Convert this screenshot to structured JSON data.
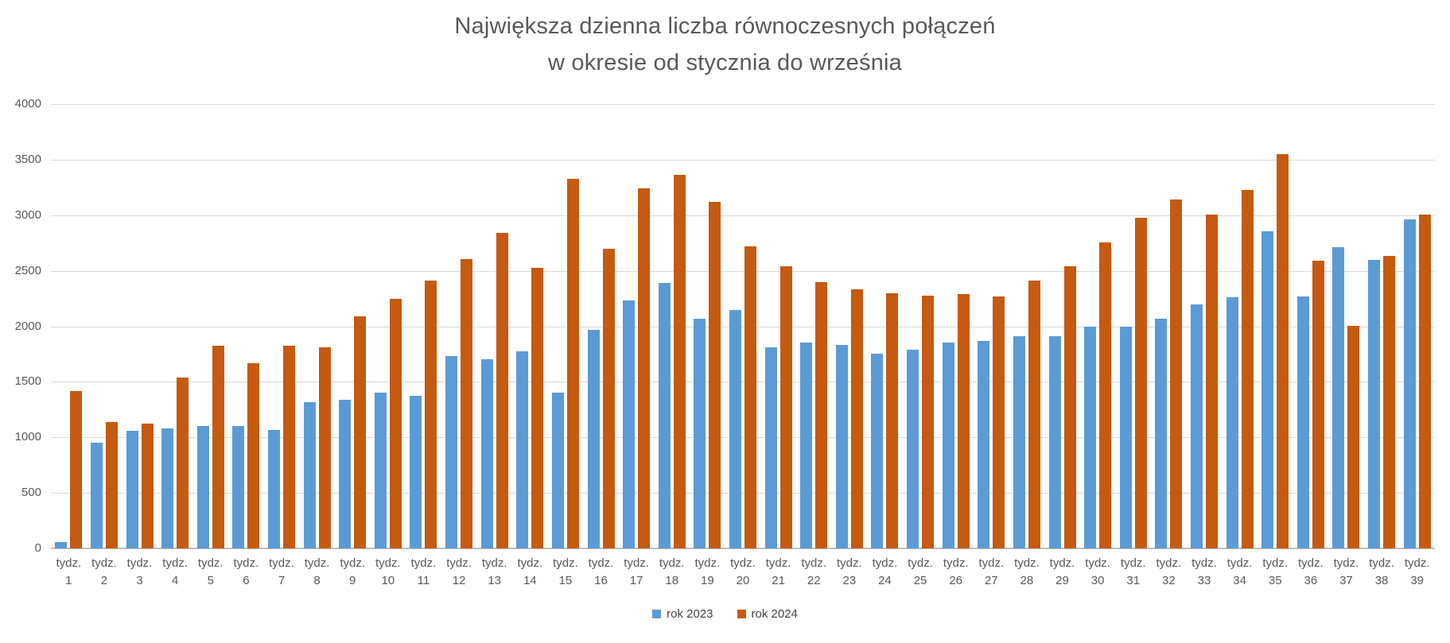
{
  "title": {
    "line1": "Największa dzienna liczba równoczesnych połączeń",
    "line2": "w okresie od stycznia do września"
  },
  "legend": [
    {
      "label": "rok 2023",
      "color": "#5B9BD5"
    },
    {
      "label": "rok 2024",
      "color": "#C55A11"
    }
  ],
  "axis": {
    "y_ticks": [
      0,
      500,
      1000,
      1500,
      2000,
      2500,
      3000,
      3500,
      4000
    ],
    "x_label_prefix": "tydz.",
    "week_numbers": [
      1,
      2,
      3,
      4,
      5,
      6,
      7,
      8,
      9,
      10,
      11,
      12,
      13,
      14,
      15,
      16,
      17,
      18,
      19,
      20,
      21,
      22,
      23,
      24,
      25,
      26,
      27,
      28,
      29,
      30,
      31,
      32,
      33,
      34,
      35,
      36,
      37,
      38,
      39
    ]
  },
  "colors": {
    "series_2023": "#5B9BD5",
    "series_2024": "#C55A11",
    "gridline": "#D9D9D9",
    "axis_line": "#BFBFBF",
    "text": "#595959"
  },
  "chart_data": {
    "type": "bar",
    "title": "Największa dzienna liczba równoczesnych połączeń w okresie od stycznia do września",
    "xlabel": "",
    "ylabel": "",
    "ylim": [
      0,
      4000
    ],
    "y_tick_step": 500,
    "grid": true,
    "legend_position": "bottom",
    "categories": [
      "tydz. 1",
      "tydz. 2",
      "tydz. 3",
      "tydz. 4",
      "tydz. 5",
      "tydz. 6",
      "tydz. 7",
      "tydz. 8",
      "tydz. 9",
      "tydz. 10",
      "tydz. 11",
      "tydz. 12",
      "tydz. 13",
      "tydz. 14",
      "tydz. 15",
      "tydz. 16",
      "tydz. 17",
      "tydz. 18",
      "tydz. 19",
      "tydz. 20",
      "tydz. 21",
      "tydz. 22",
      "tydz. 23",
      "tydz. 24",
      "tydz. 25",
      "tydz. 26",
      "tydz. 27",
      "tydz. 28",
      "tydz. 29",
      "tydz. 30",
      "tydz. 31",
      "tydz. 32",
      "tydz. 33",
      "tydz. 34",
      "tydz. 35",
      "tydz. 36",
      "tydz. 37",
      "tydz. 38",
      "tydz. 39"
    ],
    "series": [
      {
        "name": "rok 2023",
        "color": "#5B9BD5",
        "values": [
          60,
          955,
          1060,
          1080,
          1100,
          1100,
          1065,
          1315,
          1335,
          1400,
          1375,
          1735,
          1700,
          1775,
          1405,
          1965,
          2230,
          2390,
          2070,
          2145,
          1810,
          1855,
          1835,
          1750,
          1790,
          1850,
          1870,
          1910,
          1910,
          2000,
          2000,
          2070,
          2200,
          2260,
          2855,
          2270,
          2710,
          2600,
          2960
        ]
      },
      {
        "name": "rok 2024",
        "color": "#C55A11",
        "values": [
          1420,
          1140,
          1125,
          1540,
          1825,
          1665,
          1825,
          1810,
          2090,
          2250,
          2410,
          2605,
          2840,
          2525,
          3330,
          2700,
          3240,
          3360,
          3120,
          2720,
          2540,
          2400,
          2335,
          2295,
          2275,
          2290,
          2265,
          2410,
          2540,
          2755,
          2980,
          3140,
          3005,
          3225,
          3550,
          2590,
          2005,
          2635,
          3005
        ]
      }
    ]
  }
}
